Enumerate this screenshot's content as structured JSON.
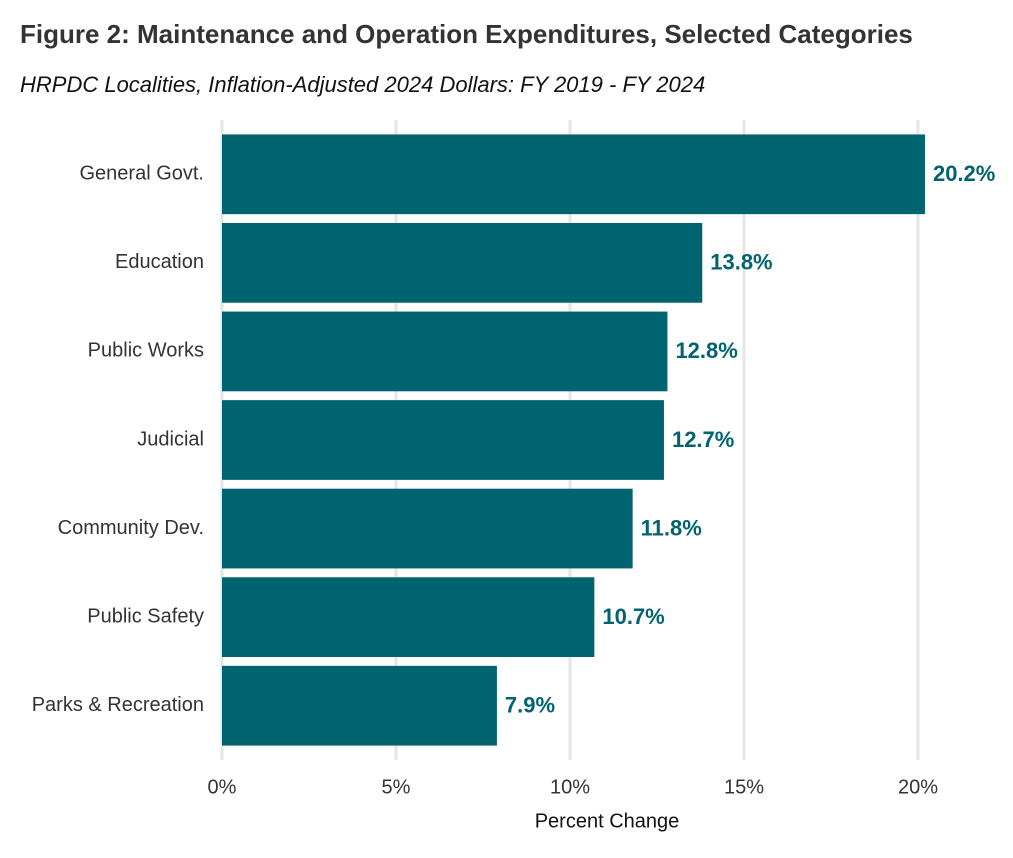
{
  "chart_data": {
    "type": "bar",
    "orientation": "horizontal",
    "title": "Figure 2: Maintenance and Operation Expenditures, Selected Categories",
    "subtitle": "HRPDC Localities, Inflation-Adjusted 2024 Dollars: FY 2019 - FY 2024",
    "x_label": "Percent Change",
    "categories": [
      "General Govt.",
      "Education",
      "Public Works",
      "Judicial",
      "Community Dev.",
      "Public Safety",
      "Parks & Recreation"
    ],
    "values": [
      20.2,
      13.8,
      12.8,
      12.7,
      11.8,
      10.7,
      7.9
    ],
    "value_labels": [
      "20.2%",
      "13.8%",
      "12.8%",
      "12.7%",
      "11.8%",
      "10.7%",
      "7.9%"
    ],
    "color": "#006370",
    "xlim": [
      0,
      20
    ],
    "xticks": [
      {
        "value": 0,
        "label": "0%"
      },
      {
        "value": 5,
        "label": "5%"
      },
      {
        "value": 10,
        "label": "10%"
      },
      {
        "value": 15,
        "label": "15%"
      },
      {
        "value": 20,
        "label": "20%"
      }
    ],
    "grid": true
  }
}
